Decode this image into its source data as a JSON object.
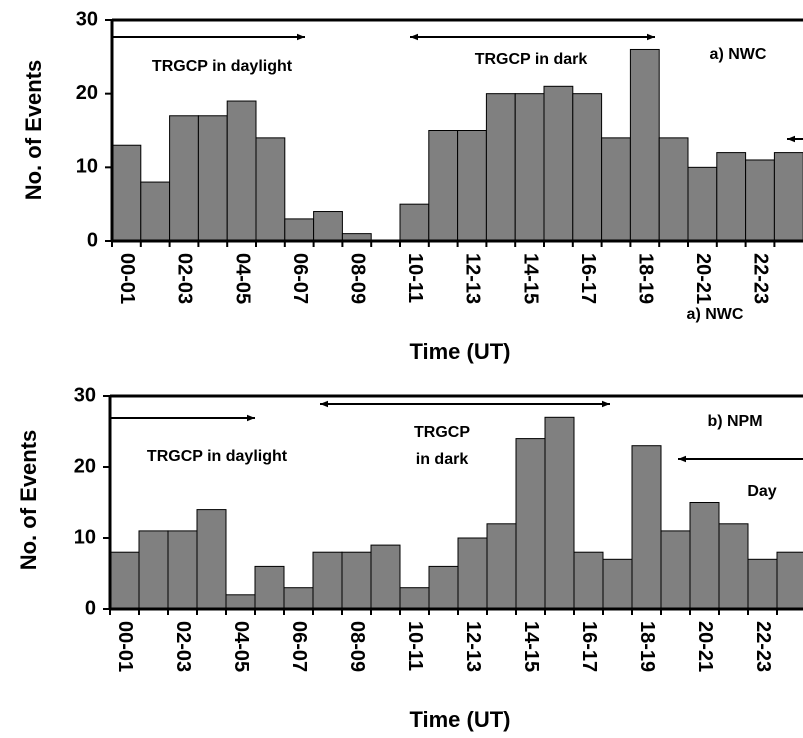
{
  "chart_data": [
    {
      "type": "bar",
      "categories": [
        "00-01",
        null,
        "02-03",
        null,
        "04-05",
        null,
        "06-07",
        null,
        "08-09",
        null,
        "10-11",
        null,
        "12-13",
        null,
        "14-15",
        null,
        "16-17",
        null,
        "18-19",
        null,
        "20-21",
        null,
        "22-23",
        null
      ],
      "values": [
        13,
        8,
        17,
        17,
        19,
        14,
        3,
        4,
        1,
        0,
        5,
        15,
        15,
        20,
        20,
        21,
        20,
        14,
        26,
        14,
        10,
        12,
        11,
        12
      ],
      "color": "#808080",
      "ylim": [
        0,
        30
      ],
      "yticks": [
        0,
        10,
        20,
        30
      ],
      "y_label": "No. of Events",
      "x_label": "Time (UT)",
      "annotations": [
        "TRGCP in daylight",
        "TRGCP in dark",
        "a) NWC",
        "a) NWC"
      ]
    },
    {
      "type": "bar",
      "categories": [
        "00-01",
        null,
        "02-03",
        null,
        "04-05",
        null,
        "06-07",
        null,
        "08-09",
        null,
        "10-11",
        null,
        "12-13",
        null,
        "14-15",
        null,
        "16-17",
        null,
        "18-19",
        null,
        "20-21",
        null,
        "22-23",
        null
      ],
      "values": [
        8,
        11,
        11,
        14,
        2,
        6,
        3,
        8,
        8,
        9,
        3,
        6,
        10,
        12,
        24,
        27,
        8,
        7,
        23,
        11,
        15,
        12,
        7,
        8
      ],
      "color": "#808080",
      "ylim": [
        0,
        30
      ],
      "yticks": [
        0,
        10,
        20,
        30
      ],
      "y_label": "No. of Events",
      "x_label": "Time (UT)",
      "annotations": [
        "TRGCP in daylight",
        "TRGCP",
        "in dark",
        "b) NPM",
        "Day"
      ]
    }
  ]
}
